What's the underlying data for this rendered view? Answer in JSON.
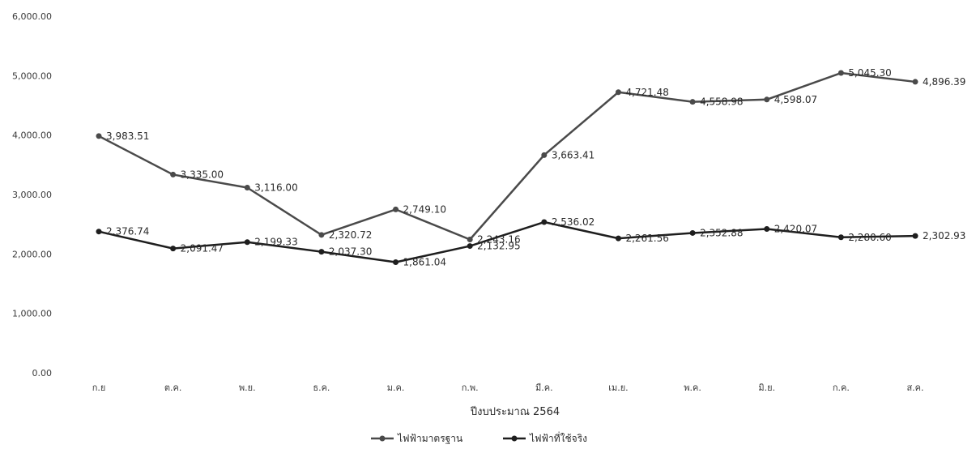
{
  "chart_data": {
    "type": "line",
    "categories": [
      "ก.ย",
      "ต.ค.",
      "พ.ย.",
      "ธ.ค.",
      "ม.ค.",
      "ก.พ.",
      "มี.ค.",
      "เม.ย.",
      "พ.ค.",
      "มิ.ย.",
      "ก.ค.",
      "ส.ค."
    ],
    "series": [
      {
        "name": "ไฟฟ้ามาตรฐาน",
        "values": [
          3983.51,
          3335.0,
          3116.0,
          2320.72,
          2749.1,
          2243.16,
          3663.41,
          4721.48,
          4558.98,
          4598.07,
          5045.3,
          4896.39
        ],
        "labels": [
          "3,983.51",
          "3,335.00",
          "3,116.00",
          "2,320.72",
          "2,749.10",
          "2,243.16",
          "3,663.41",
          "4,721.48",
          "4,558.98",
          "4,598.07",
          "5,045.30",
          "4,896.39"
        ],
        "color": "#4a4a4a"
      },
      {
        "name": "ไฟฟ้าที่ใช้จริง",
        "values": [
          2376.74,
          2091.47,
          2199.33,
          2037.3,
          1861.04,
          2132.95,
          2536.02,
          2261.56,
          2352.88,
          2420.07,
          2280.6,
          2302.93
        ],
        "labels": [
          "2,376.74",
          "2,091.47",
          "2,199.33",
          "2,037.30",
          "1,861.04",
          "2,132.95",
          "2,536.02",
          "2,261.56",
          "2,352.88",
          "2,420.07",
          "2,280.60",
          "2,302.93"
        ],
        "color": "#1e1e1e"
      }
    ],
    "yticks": [
      "0.00",
      "1,000.00",
      "2,000.00",
      "3,000.00",
      "4,000.00",
      "5,000.00",
      "6,000.00"
    ],
    "ylim": [
      0,
      6000
    ],
    "xlabel": "ปีงบประมาณ 2564",
    "ylabel": "",
    "legend_position": "bottom",
    "grid": false
  }
}
